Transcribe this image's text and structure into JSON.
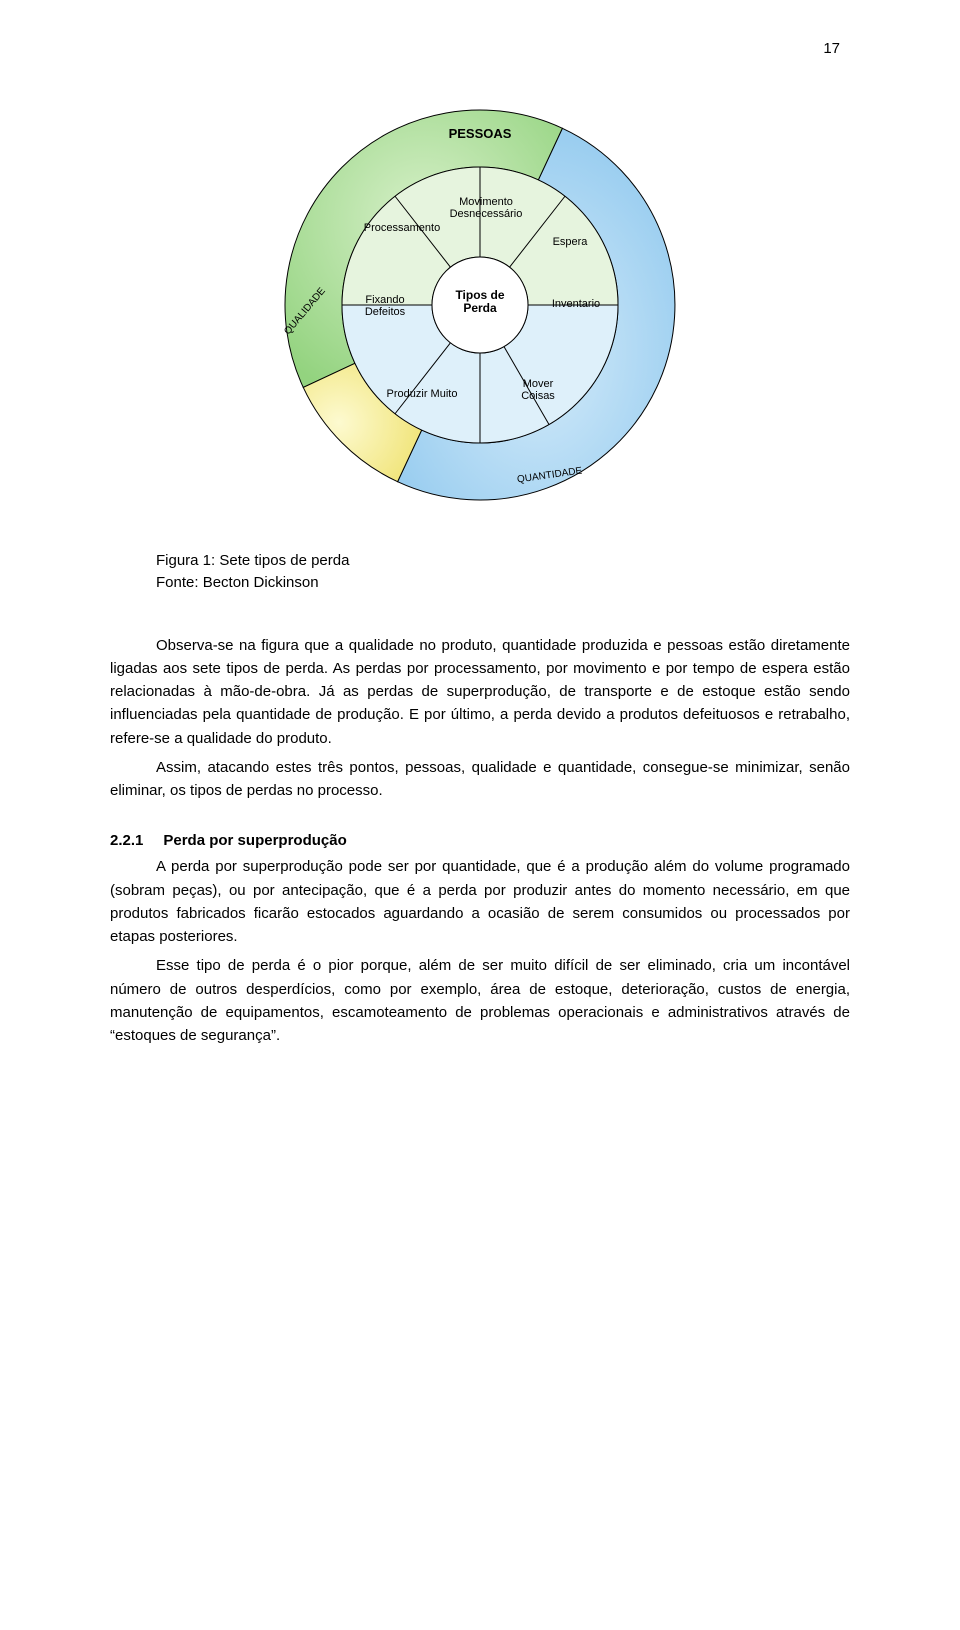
{
  "page_number": "17",
  "diagram": {
    "title_top": "PESSOAS",
    "left_axis": "QUALIDADE",
    "bottom_axis": "QUANTIDADE",
    "center_label": "Tipos de\nPerda",
    "wedges": {
      "top_left": "Processamento",
      "top_center": "Movimento\nDesnecessário",
      "top_right": "Espera",
      "mid_left": "Fixando\nDefeitos",
      "mid_right": "Inventario",
      "bot_left": "Produzir Muito",
      "bot_right": "Mover\nCoisas"
    },
    "colors": {
      "outer_top_grad_a": "#d7f0c9",
      "outer_top_grad_b": "#93d37f",
      "outer_left_grad_a": "#fdfad0",
      "outer_left_grad_b": "#f1e57c",
      "outer_bot_grad_a": "#d6ecfa",
      "outer_bot_grad_b": "#8fc8ee",
      "inner_top": "#e6f4de",
      "inner_bot": "#def0fa",
      "center_fill": "#ffffff",
      "stroke": "#000000"
    },
    "font_size_title": 13,
    "font_size_wedge": 11,
    "font_size_axis": 10,
    "font_size_center": 12
  },
  "caption": {
    "line1": "Figura 1: Sete tipos de perda",
    "line2": "Fonte: Becton Dickinson"
  },
  "paragraphs": {
    "p1": "Observa-se na figura que a qualidade no produto, quantidade produzida e pessoas estão diretamente ligadas aos sete tipos de perda. As perdas por processamento, por movimento e por tempo de espera estão relacionadas à mão-de-obra. Já as perdas de superprodução, de transporte e de estoque estão sendo influenciadas pela quantidade de produção. E por último, a perda devido a produtos defeituosos e retrabalho, refere-se a qualidade do produto.",
    "p2": "Assim, atacando estes três pontos, pessoas, qualidade e quantidade, consegue-se minimizar, senão eliminar, os tipos de perdas no processo.",
    "section_num": "2.2.1",
    "section_title": "Perda por superprodução",
    "p3": "A perda por superprodução pode ser por quantidade, que é a produção além do volume programado (sobram peças), ou por antecipação, que é a perda por produzir antes do momento necessário, em que produtos fabricados ficarão estocados aguardando a ocasião de serem consumidos ou processados por etapas posteriores.",
    "p4": "Esse tipo de perda é o pior porque, além de ser muito difícil de ser eliminado, cria um incontável número de outros desperdícios, como por exemplo, área de estoque, deterioração, custos de energia, manutenção de equipamentos, escamoteamento de problemas operacionais e administrativos através de “estoques de segurança”."
  }
}
